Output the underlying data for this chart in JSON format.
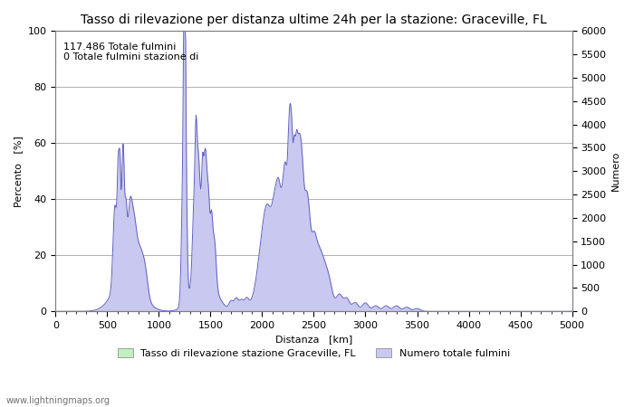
{
  "title": "Tasso di rilevazione per distanza ultime 24h per la stazione: Graceville, FL",
  "xlabel": "Distanza   [km]",
  "ylabel_left": "Percento   [%]",
  "ylabel_right": "Numero",
  "annotation": "117.486 Totale fulmini\n0 Totale fulmini stazione di",
  "xlim": [
    0,
    5000
  ],
  "ylim_left": [
    0,
    100
  ],
  "ylim_right": [
    0,
    6000
  ],
  "xticks": [
    0,
    500,
    1000,
    1500,
    2000,
    2500,
    3000,
    3500,
    4000,
    4500,
    5000
  ],
  "yticks_left": [
    0,
    20,
    40,
    60,
    80,
    100
  ],
  "yticks_right": [
    0,
    500,
    1000,
    1500,
    2000,
    2500,
    3000,
    3500,
    4000,
    4500,
    5000,
    5500,
    6000
  ],
  "fill_color_blue": "#c8c8f0",
  "fill_color_green": "#c0f0c0",
  "line_color_blue": "#6060c0",
  "line_color_green": "#40b040",
  "bg_color": "#ffffff",
  "grid_color": "#b0b0b0",
  "watermark": "www.lightningmaps.org",
  "legend_label_green": "Tasso di rilevazione stazione Graceville, FL",
  "legend_label_blue": "Numero totale fulmini",
  "title_fontsize": 10,
  "axis_fontsize": 8,
  "tick_fontsize": 8,
  "figsize": [
    7.0,
    4.5
  ],
  "dpi": 100
}
